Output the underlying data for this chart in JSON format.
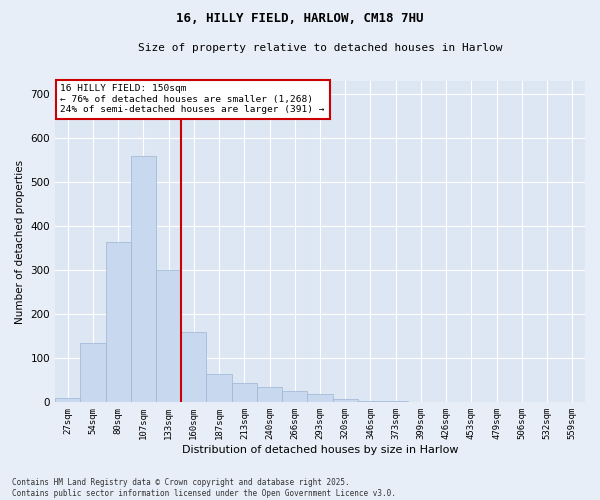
{
  "title": "16, HILLY FIELD, HARLOW, CM18 7HU",
  "subtitle": "Size of property relative to detached houses in Harlow",
  "xlabel": "Distribution of detached houses by size in Harlow",
  "ylabel": "Number of detached properties",
  "bar_color": "#c8d9ef",
  "bar_edge_color": "#9bb4d4",
  "background_color": "#dde6f3",
  "grid_color": "#ffffff",
  "vline_color": "#cc0000",
  "vline_pos": 4.5,
  "annotation_text": "16 HILLY FIELD: 150sqm\n← 76% of detached houses are smaller (1,268)\n24% of semi-detached houses are larger (391) →",
  "annotation_box_color": "#cc0000",
  "tick_labels": [
    "27sqm",
    "54sqm",
    "80sqm",
    "107sqm",
    "133sqm",
    "160sqm",
    "187sqm",
    "213sqm",
    "240sqm",
    "266sqm",
    "293sqm",
    "320sqm",
    "346sqm",
    "373sqm",
    "399sqm",
    "426sqm",
    "453sqm",
    "479sqm",
    "506sqm",
    "532sqm",
    "559sqm"
  ],
  "bar_heights": [
    10,
    135,
    365,
    560,
    300,
    160,
    65,
    45,
    35,
    25,
    18,
    8,
    4,
    2,
    1,
    0,
    0,
    0,
    0,
    0,
    0
  ],
  "ylim": [
    0,
    730
  ],
  "yticks": [
    0,
    100,
    200,
    300,
    400,
    500,
    600,
    700
  ],
  "footnote": "Contains HM Land Registry data © Crown copyright and database right 2025.\nContains public sector information licensed under the Open Government Licence v3.0.",
  "figsize": [
    6.0,
    5.0
  ],
  "dpi": 100,
  "fig_bg": "#e8eef8"
}
